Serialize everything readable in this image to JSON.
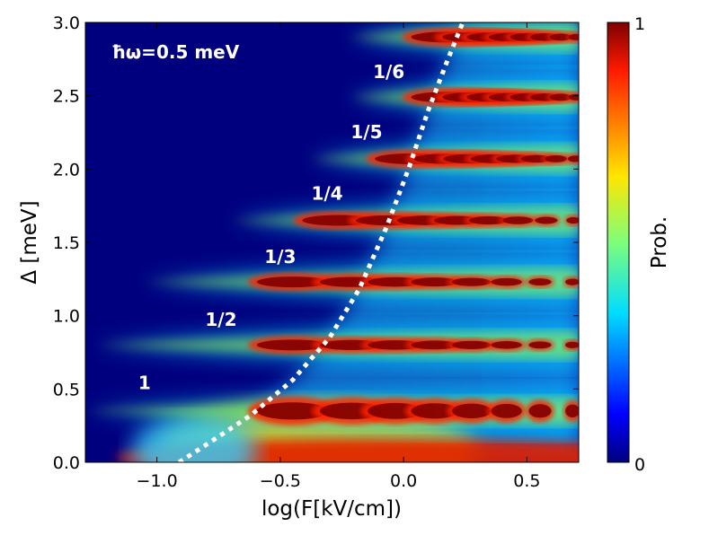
{
  "chart_data": {
    "type": "heatmap",
    "xlabel": "log(F[kV/cm])",
    "ylabel": "Δ  [meV]",
    "xlim": [
      -1.29,
      0.71
    ],
    "ylim": [
      0.0,
      3.0
    ],
    "x_ticks": [
      -1.0,
      -0.5,
      0.0,
      0.5
    ],
    "x_tick_labels": [
      "−1.0",
      "−0.5",
      "0.0",
      "0.5"
    ],
    "y_ticks": [
      0.0,
      0.5,
      1.0,
      1.5,
      2.0,
      2.5,
      3.0
    ],
    "y_tick_labels": [
      "0.0",
      "0.5",
      "1.0",
      "1.5",
      "2.0",
      "2.5",
      "3.0"
    ],
    "colorbar": {
      "label": "Prob.",
      "min": 0,
      "max": 1,
      "min_label": "0",
      "max_label": "1",
      "colormap": "jet"
    },
    "inset_label": "ħω=0.5 meV",
    "resonances": [
      {
        "label": "1",
        "delta": 0.35,
        "x_onset": -1.29,
        "label_x": -1.05,
        "label_y": 0.5
      },
      {
        "label": "1/2",
        "delta": 0.8,
        "x_onset": -1.25,
        "label_x": -0.74,
        "label_y": 0.93
      },
      {
        "label": "1/3",
        "delta": 1.23,
        "x_onset": -1.05,
        "label_x": -0.5,
        "label_y": 1.36
      },
      {
        "label": "1/4",
        "delta": 1.65,
        "x_onset": -0.7,
        "label_x": -0.31,
        "label_y": 1.79
      },
      {
        "label": "1/5",
        "delta": 2.07,
        "x_onset": -0.38,
        "label_x": -0.15,
        "label_y": 2.21
      },
      {
        "label": "1/6",
        "delta": 2.49,
        "x_onset": -0.22,
        "label_x": -0.06,
        "label_y": 2.62
      },
      {
        "label": "",
        "delta": 2.9,
        "x_onset": -0.22,
        "label_x": null,
        "label_y": null
      }
    ],
    "boundary_curve": {
      "style": "dotted",
      "color": "#ffffff",
      "points": [
        [
          -0.91,
          0.0
        ],
        [
          -0.8,
          0.12
        ],
        [
          -0.62,
          0.32
        ],
        [
          -0.45,
          0.56
        ],
        [
          -0.3,
          0.85
        ],
        [
          -0.18,
          1.18
        ],
        [
          -0.07,
          1.6
        ],
        [
          0.02,
          2.0
        ],
        [
          0.1,
          2.4
        ],
        [
          0.18,
          2.75
        ],
        [
          0.24,
          3.0
        ]
      ]
    }
  }
}
